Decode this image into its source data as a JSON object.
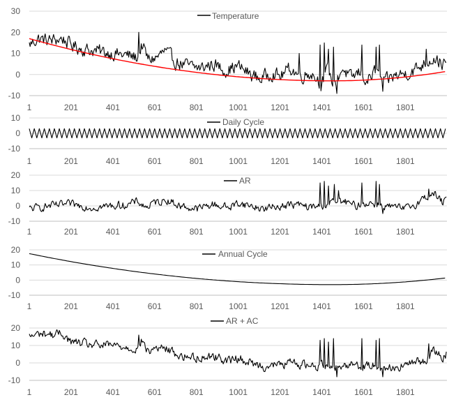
{
  "chart_data": [
    {
      "type": "line",
      "legend_position": "top-center",
      "grid": "horizontal",
      "ylim": [
        -10,
        30
      ],
      "yticks": [
        -10,
        0,
        10,
        20,
        30
      ],
      "xlim": [
        1,
        2000
      ],
      "xticks": [
        1,
        201,
        401,
        601,
        801,
        1001,
        1201,
        1401,
        1601,
        1801
      ],
      "series": [
        {
          "name": "Temperature",
          "color": "#000000",
          "anchors": {
            "x": [
              1,
              40,
              100,
              160,
              200,
              260,
              330,
              400,
              470,
              520,
              540,
              570,
              610,
              650,
              700,
              760,
              820,
              880,
              940,
              1000,
              1060,
              1110,
              1160,
              1200,
              1250,
              1300,
              1350,
              1400,
              1430,
              1460,
              1500,
              1540,
              1580,
              1620,
              1660,
              1700,
              1740,
              1780,
              1820,
              1860,
              1900,
              1940,
              1980,
              2000
            ],
            "y": [
              14,
              17,
              16,
              17,
              14,
              12,
              11,
              10,
              9,
              8,
              14,
              7,
              8,
              11,
              6,
              4,
              3,
              5,
              2,
              4,
              0,
              -2,
              1,
              -1,
              3,
              -1,
              1,
              -4,
              2,
              -5,
              3,
              -2,
              1,
              -3,
              2,
              -4,
              -1,
              0,
              1,
              3,
              6,
              8,
              5,
              4
            ]
          },
          "band": 5,
          "spikes": [
            {
              "x": 525,
              "y": 20
            },
            {
              "x": 1290,
              "y": 10
            },
            {
              "x": 1390,
              "y": 14
            },
            {
              "x": 1410,
              "y": 15
            },
            {
              "x": 1430,
              "y": 12
            },
            {
              "x": 1455,
              "y": 13
            },
            {
              "x": 1470,
              "y": -9
            },
            {
              "x": 1590,
              "y": 14
            },
            {
              "x": 1660,
              "y": 13
            },
            {
              "x": 1675,
              "y": 14
            },
            {
              "x": 1690,
              "y": -8
            },
            {
              "x": 1900,
              "y": 12
            }
          ]
        },
        {
          "name": "",
          "color": "#ff0000",
          "trend": {
            "x": [
              1,
              1450,
              2000
            ],
            "y": [
              17,
              -3,
              1.5
            ]
          }
        }
      ]
    },
    {
      "type": "line",
      "legend_position": "top-center",
      "grid": "horizontal",
      "ylim": [
        -10,
        10
      ],
      "yticks": [
        -10,
        0,
        10
      ],
      "xlim": [
        1,
        2000
      ],
      "xticks": [
        1,
        201,
        401,
        601,
        801,
        1001,
        1201,
        1401,
        1601,
        1801
      ],
      "series": [
        {
          "name": "Daily Cycle",
          "color": "#000000",
          "amplitude": 3,
          "period": 24
        }
      ]
    },
    {
      "type": "line",
      "legend_position": "top-center",
      "grid": "horizontal",
      "ylim": [
        -10,
        20
      ],
      "yticks": [
        -10,
        0,
        10,
        20
      ],
      "xlim": [
        1,
        2000
      ],
      "xticks": [
        1,
        201,
        401,
        601,
        801,
        1001,
        1201,
        1401,
        1601,
        1801
      ],
      "series": [
        {
          "name": "AR",
          "color": "#000000",
          "anchors": {
            "x": [
              1,
              100,
              200,
              300,
              400,
              480,
              520,
              560,
              600,
              660,
              720,
              800,
              880,
              960,
              1000,
              1060,
              1120,
              1200,
              1280,
              1340,
              1400,
              1440,
              1500,
              1560,
              1620,
              1680,
              1740,
              1800,
              1860,
              1900,
              1940,
              1980,
              2000
            ],
            "y": [
              -2,
              0,
              1,
              -1,
              0,
              1,
              3,
              -1,
              2,
              4,
              0,
              -2,
              1,
              -1,
              2,
              0,
              -2,
              0,
              1,
              -1,
              0,
              2,
              3,
              0,
              2,
              1,
              -1,
              -2,
              2,
              6,
              8,
              2,
              4
            ]
          },
          "band": 4,
          "spikes": [
            {
              "x": 1390,
              "y": 15
            },
            {
              "x": 1410,
              "y": 16
            },
            {
              "x": 1430,
              "y": 13
            },
            {
              "x": 1460,
              "y": 14
            },
            {
              "x": 1480,
              "y": 10
            },
            {
              "x": 1590,
              "y": 15
            },
            {
              "x": 1660,
              "y": 16
            },
            {
              "x": 1675,
              "y": 14
            },
            {
              "x": 1690,
              "y": -5
            },
            {
              "x": 1910,
              "y": 11
            }
          ]
        }
      ]
    },
    {
      "type": "line",
      "legend_position": "top-center",
      "grid": "horizontal",
      "ylim": [
        -10,
        20
      ],
      "yticks": [
        -10,
        0,
        10,
        20
      ],
      "xlim": [
        1,
        2000
      ],
      "xticks": [
        1,
        201,
        401,
        601,
        801,
        1001,
        1201,
        1401,
        1601,
        1801
      ],
      "series": [
        {
          "name": "Annual Cycle",
          "color": "#000000",
          "trend": {
            "x": [
              1,
              1450,
              2000
            ],
            "y": [
              17.5,
              -3,
              1.5
            ]
          }
        }
      ]
    },
    {
      "type": "line",
      "legend_position": "top-center",
      "grid": "horizontal",
      "ylim": [
        -10,
        20
      ],
      "yticks": [
        -10,
        0,
        10,
        20
      ],
      "xlim": [
        1,
        2000
      ],
      "xticks": [
        1,
        201,
        401,
        601,
        801,
        1001,
        1201,
        1401,
        1601,
        1801
      ],
      "series": [
        {
          "name": "AR + AC",
          "color": "#000000",
          "anchors": {
            "x": [
              1,
              60,
              120,
              160,
              200,
              260,
              330,
              400,
              470,
              520,
              540,
              570,
              610,
              660,
              720,
              800,
              880,
              960,
              1000,
              1060,
              1120,
              1200,
              1260,
              1320,
              1380,
              1430,
              1480,
              1540,
              1600,
              1660,
              1720,
              1780,
              1840,
              1900,
              1940,
              1980,
              2000
            ],
            "y": [
              15,
              17,
              16,
              17,
              12,
              11,
              10,
              10,
              9,
              8,
              13,
              6,
              9,
              8,
              4,
              3,
              4,
              1,
              3,
              0,
              -2,
              -1,
              0,
              -1,
              -2,
              0,
              -3,
              0,
              -2,
              -1,
              -3,
              -2,
              0,
              2,
              7,
              3,
              6
            ]
          },
          "band": 4,
          "spikes": [
            {
              "x": 525,
              "y": 16
            },
            {
              "x": 1390,
              "y": 13
            },
            {
              "x": 1410,
              "y": 14
            },
            {
              "x": 1430,
              "y": 12
            },
            {
              "x": 1455,
              "y": 14
            },
            {
              "x": 1470,
              "y": -8
            },
            {
              "x": 1590,
              "y": 14
            },
            {
              "x": 1660,
              "y": 13
            },
            {
              "x": 1675,
              "y": 14
            },
            {
              "x": 1690,
              "y": -8
            },
            {
              "x": 1910,
              "y": 11
            }
          ]
        }
      ]
    }
  ]
}
